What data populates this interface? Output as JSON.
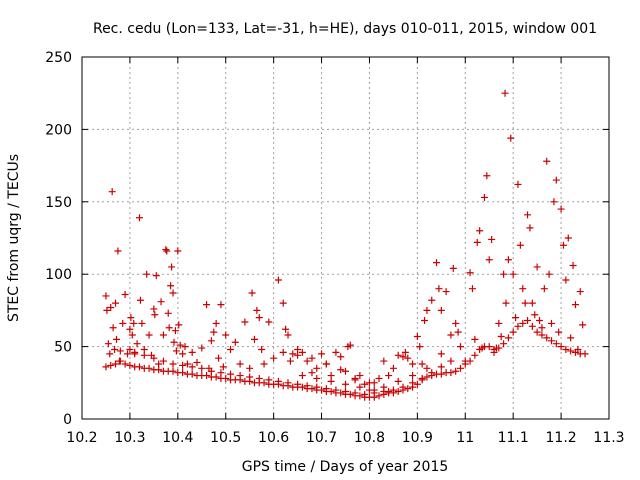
{
  "chart_data": {
    "type": "scatter",
    "title": "Rec. cedu (Lon=133, Lat=-31, h=HE), days 010-011, 2015, window 001",
    "xlabel": "GPS time / Days of year 2015",
    "ylabel": "STEC from uqrg / TECUs",
    "xlim": [
      10.2,
      11.3
    ],
    "ylim": [
      0,
      250
    ],
    "xticks": [
      "10.2",
      "10.3",
      "10.4",
      "10.5",
      "10.6",
      "10.7",
      "10.8",
      "10.9",
      "11",
      "11.1",
      "11.2",
      "11.3"
    ],
    "yticks": [
      "0",
      "50",
      "100",
      "150",
      "200",
      "250"
    ],
    "grid": true,
    "legend": "none",
    "marker": "plus",
    "color": "#cc0000",
    "points": [
      [
        10.25,
        85
      ],
      [
        10.252,
        75
      ],
      [
        10.255,
        52
      ],
      [
        10.258,
        45
      ],
      [
        10.26,
        77
      ],
      [
        10.263,
        157
      ],
      [
        10.265,
        63
      ],
      [
        10.268,
        48
      ],
      [
        10.27,
        80
      ],
      [
        10.272,
        55
      ],
      [
        10.275,
        116
      ],
      [
        10.278,
        40
      ],
      [
        10.28,
        47
      ],
      [
        10.285,
        66
      ],
      [
        10.29,
        86
      ],
      [
        10.295,
        45
      ],
      [
        10.3,
        62
      ],
      [
        10.302,
        70
      ],
      [
        10.305,
        58
      ],
      [
        10.308,
        66
      ],
      [
        10.31,
        46
      ],
      [
        10.315,
        52
      ],
      [
        10.32,
        139
      ],
      [
        10.322,
        82
      ],
      [
        10.325,
        66
      ],
      [
        10.33,
        48
      ],
      [
        10.335,
        100
      ],
      [
        10.34,
        58
      ],
      [
        10.345,
        44
      ],
      [
        10.35,
        76
      ],
      [
        10.352,
        72
      ],
      [
        10.355,
        99
      ],
      [
        10.36,
        38
      ],
      [
        10.365,
        81
      ],
      [
        10.37,
        58
      ],
      [
        10.375,
        117
      ],
      [
        10.377,
        116
      ],
      [
        10.38,
        73
      ],
      [
        10.382,
        63
      ],
      [
        10.385,
        92
      ],
      [
        10.387,
        105
      ],
      [
        10.39,
        87
      ],
      [
        10.392,
        53
      ],
      [
        10.395,
        61
      ],
      [
        10.397,
        47
      ],
      [
        10.4,
        116
      ],
      [
        10.402,
        65
      ],
      [
        10.405,
        51
      ],
      [
        10.41,
        45
      ],
      [
        10.415,
        50
      ],
      [
        10.42,
        38
      ],
      [
        10.43,
        46
      ],
      [
        10.44,
        39
      ],
      [
        10.45,
        49
      ],
      [
        10.46,
        79
      ],
      [
        10.465,
        35
      ],
      [
        10.47,
        54
      ],
      [
        10.475,
        60
      ],
      [
        10.48,
        66
      ],
      [
        10.485,
        42
      ],
      [
        10.49,
        79
      ],
      [
        10.495,
        36
      ],
      [
        10.5,
        58
      ],
      [
        10.51,
        48
      ],
      [
        10.52,
        53
      ],
      [
        10.53,
        38
      ],
      [
        10.54,
        67
      ],
      [
        10.55,
        35
      ],
      [
        10.555,
        87
      ],
      [
        10.56,
        55
      ],
      [
        10.565,
        75
      ],
      [
        10.57,
        70
      ],
      [
        10.575,
        48
      ],
      [
        10.58,
        38
      ],
      [
        10.59,
        67
      ],
      [
        10.6,
        42
      ],
      [
        10.61,
        96
      ],
      [
        10.62,
        80
      ],
      [
        10.625,
        62
      ],
      [
        10.63,
        58
      ],
      [
        10.635,
        40
      ],
      [
        10.64,
        45
      ],
      [
        10.65,
        48
      ],
      [
        10.66,
        46
      ],
      [
        10.67,
        40
      ],
      [
        10.68,
        32
      ],
      [
        10.69,
        35
      ],
      [
        10.7,
        45
      ],
      [
        10.71,
        38
      ],
      [
        10.72,
        30
      ],
      [
        10.73,
        46
      ],
      [
        10.74,
        43
      ],
      [
        10.75,
        33
      ],
      [
        10.755,
        50
      ],
      [
        10.76,
        51
      ],
      [
        10.77,
        27
      ],
      [
        10.78,
        30
      ],
      [
        10.79,
        24
      ],
      [
        10.8,
        20
      ],
      [
        10.81,
        25
      ],
      [
        10.82,
        28
      ],
      [
        10.83,
        40
      ],
      [
        10.84,
        30
      ],
      [
        10.85,
        35
      ],
      [
        10.86,
        44
      ],
      [
        10.87,
        43
      ],
      [
        10.875,
        46
      ],
      [
        10.88,
        42
      ],
      [
        10.89,
        38
      ],
      [
        10.9,
        57
      ],
      [
        10.905,
        50
      ],
      [
        10.91,
        38
      ],
      [
        10.915,
        68
      ],
      [
        10.92,
        75
      ],
      [
        10.93,
        82
      ],
      [
        10.94,
        108
      ],
      [
        10.945,
        90
      ],
      [
        10.95,
        75
      ],
      [
        10.96,
        88
      ],
      [
        10.97,
        58
      ],
      [
        10.975,
        104
      ],
      [
        10.98,
        66
      ],
      [
        10.985,
        60
      ],
      [
        10.99,
        50
      ],
      [
        11.0,
        40
      ],
      [
        11.01,
        101
      ],
      [
        11.015,
        90
      ],
      [
        11.02,
        55
      ],
      [
        11.025,
        122
      ],
      [
        11.03,
        130
      ],
      [
        11.035,
        49
      ],
      [
        11.04,
        153
      ],
      [
        11.045,
        168
      ],
      [
        11.05,
        110
      ],
      [
        11.055,
        124
      ],
      [
        11.06,
        46
      ],
      [
        11.065,
        49
      ],
      [
        11.07,
        66
      ],
      [
        11.075,
        57
      ],
      [
        11.08,
        100
      ],
      [
        11.083,
        225
      ],
      [
        11.085,
        80
      ],
      [
        11.09,
        110
      ],
      [
        11.095,
        194
      ],
      [
        11.1,
        100
      ],
      [
        11.105,
        70
      ],
      [
        11.11,
        162
      ],
      [
        11.115,
        120
      ],
      [
        11.12,
        90
      ],
      [
        11.125,
        80
      ],
      [
        11.13,
        141
      ],
      [
        11.135,
        132
      ],
      [
        11.14,
        80
      ],
      [
        11.145,
        72
      ],
      [
        11.15,
        105
      ],
      [
        11.155,
        68
      ],
      [
        11.16,
        63
      ],
      [
        11.165,
        90
      ],
      [
        11.17,
        178
      ],
      [
        11.175,
        100
      ],
      [
        11.18,
        66
      ],
      [
        11.185,
        150
      ],
      [
        11.19,
        165
      ],
      [
        11.195,
        60
      ],
      [
        11.2,
        145
      ],
      [
        11.205,
        120
      ],
      [
        11.21,
        96
      ],
      [
        11.215,
        125
      ],
      [
        11.22,
        56
      ],
      [
        11.225,
        106
      ],
      [
        11.23,
        79
      ],
      [
        11.235,
        48
      ],
      [
        11.24,
        88
      ],
      [
        11.245,
        65
      ],
      [
        11.25,
        45
      ],
      [
        10.25,
        36
      ],
      [
        10.26,
        37
      ],
      [
        10.27,
        38
      ],
      [
        10.28,
        40
      ],
      [
        10.29,
        38
      ],
      [
        10.3,
        37
      ],
      [
        10.31,
        36
      ],
      [
        10.32,
        36
      ],
      [
        10.33,
        35
      ],
      [
        10.34,
        35
      ],
      [
        10.35,
        34
      ],
      [
        10.36,
        34
      ],
      [
        10.37,
        33
      ],
      [
        10.38,
        33
      ],
      [
        10.39,
        33
      ],
      [
        10.4,
        32
      ],
      [
        10.41,
        32
      ],
      [
        10.42,
        31
      ],
      [
        10.43,
        31
      ],
      [
        10.44,
        30
      ],
      [
        10.45,
        30
      ],
      [
        10.46,
        30
      ],
      [
        10.47,
        29
      ],
      [
        10.48,
        29
      ],
      [
        10.49,
        28
      ],
      [
        10.5,
        28
      ],
      [
        10.51,
        27
      ],
      [
        10.52,
        27
      ],
      [
        10.53,
        27
      ],
      [
        10.54,
        26
      ],
      [
        10.55,
        26
      ],
      [
        10.56,
        25
      ],
      [
        10.57,
        25
      ],
      [
        10.58,
        25
      ],
      [
        10.59,
        24
      ],
      [
        10.6,
        24
      ],
      [
        10.61,
        24
      ],
      [
        10.62,
        23
      ],
      [
        10.63,
        23
      ],
      [
        10.64,
        22
      ],
      [
        10.65,
        22
      ],
      [
        10.66,
        22
      ],
      [
        10.67,
        21
      ],
      [
        10.68,
        21
      ],
      [
        10.69,
        20
      ],
      [
        10.7,
        20
      ],
      [
        10.71,
        19
      ],
      [
        10.72,
        19
      ],
      [
        10.73,
        18
      ],
      [
        10.74,
        18
      ],
      [
        10.75,
        17
      ],
      [
        10.76,
        17
      ],
      [
        10.77,
        16
      ],
      [
        10.78,
        16
      ],
      [
        10.79,
        15
      ],
      [
        10.8,
        15
      ],
      [
        10.81,
        15
      ],
      [
        10.82,
        16
      ],
      [
        10.83,
        17
      ],
      [
        10.84,
        18
      ],
      [
        10.85,
        18
      ],
      [
        10.86,
        19
      ],
      [
        10.87,
        20
      ],
      [
        10.88,
        21
      ],
      [
        10.89,
        22
      ],
      [
        10.9,
        24
      ],
      [
        10.91,
        27
      ],
      [
        10.92,
        29
      ],
      [
        10.93,
        30
      ],
      [
        10.94,
        31
      ],
      [
        10.95,
        31
      ],
      [
        10.96,
        32
      ],
      [
        10.97,
        32
      ],
      [
        10.98,
        33
      ],
      [
        10.99,
        35
      ],
      [
        11.0,
        38
      ],
      [
        11.01,
        40
      ],
      [
        11.02,
        44
      ],
      [
        11.03,
        48
      ],
      [
        11.04,
        50
      ],
      [
        11.05,
        50
      ],
      [
        11.06,
        48
      ],
      [
        11.07,
        49
      ],
      [
        11.08,
        52
      ],
      [
        11.09,
        56
      ],
      [
        11.1,
        60
      ],
      [
        11.11,
        64
      ],
      [
        11.12,
        66
      ],
      [
        11.13,
        68
      ],
      [
        11.14,
        64
      ],
      [
        11.15,
        60
      ],
      [
        11.16,
        58
      ],
      [
        11.17,
        56
      ],
      [
        11.18,
        54
      ],
      [
        11.19,
        52
      ],
      [
        11.2,
        50
      ],
      [
        11.21,
        48
      ],
      [
        11.22,
        47
      ],
      [
        11.23,
        46
      ],
      [
        11.24,
        45
      ],
      [
        10.3,
        48
      ],
      [
        10.31,
        45
      ],
      [
        10.33,
        44
      ],
      [
        10.35,
        42
      ],
      [
        10.37,
        40
      ],
      [
        10.39,
        38
      ],
      [
        10.41,
        37
      ],
      [
        10.43,
        36
      ],
      [
        10.45,
        35
      ],
      [
        10.47,
        33
      ],
      [
        10.49,
        32
      ],
      [
        10.51,
        31
      ],
      [
        10.53,
        30
      ],
      [
        10.55,
        29
      ],
      [
        10.57,
        28
      ],
      [
        10.59,
        27
      ],
      [
        10.61,
        26
      ],
      [
        10.63,
        25
      ],
      [
        10.65,
        24
      ],
      [
        10.67,
        23
      ],
      [
        10.69,
        22
      ],
      [
        10.71,
        21
      ],
      [
        10.73,
        20
      ],
      [
        10.75,
        19
      ],
      [
        10.77,
        18
      ],
      [
        10.79,
        17
      ],
      [
        10.81,
        18
      ],
      [
        10.83,
        19
      ],
      [
        10.85,
        20
      ],
      [
        10.87,
        22
      ],
      [
        10.89,
        25
      ],
      [
        10.91,
        28
      ],
      [
        10.93,
        32
      ],
      [
        10.95,
        36
      ],
      [
        10.97,
        40
      ],
      [
        10.62,
        46
      ],
      [
        10.65,
        44
      ],
      [
        10.68,
        42
      ],
      [
        10.71,
        38
      ],
      [
        10.74,
        34
      ],
      [
        10.77,
        28
      ],
      [
        10.8,
        25
      ],
      [
        10.83,
        22
      ],
      [
        10.86,
        26
      ],
      [
        10.89,
        30
      ],
      [
        10.92,
        35
      ],
      [
        10.95,
        45
      ],
      [
        10.66,
        30
      ],
      [
        10.69,
        28
      ],
      [
        10.72,
        26
      ],
      [
        10.75,
        24
      ],
      [
        10.78,
        22
      ],
      [
        10.81,
        20
      ],
      [
        10.84,
        19
      ]
    ]
  }
}
